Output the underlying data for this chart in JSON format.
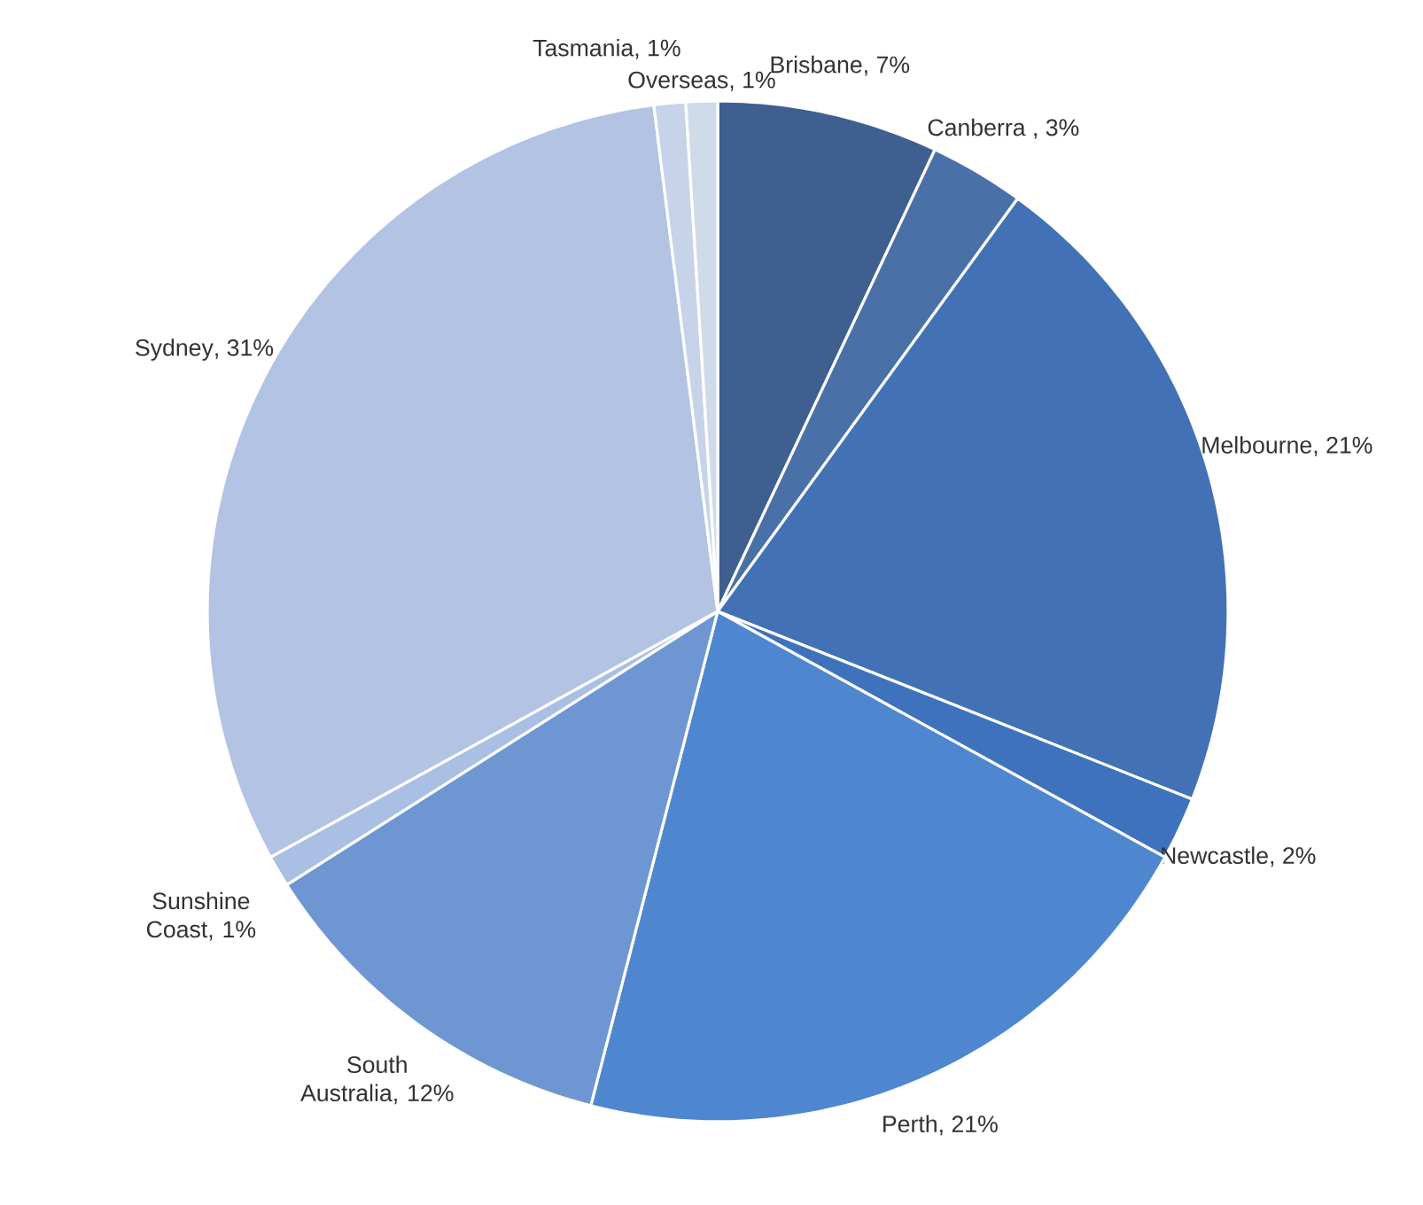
{
  "chart_data": {
    "type": "pie",
    "categories": [
      "Brisbane",
      "Canberra",
      "Melbourne",
      "Newcastle",
      "Perth",
      "South Australia",
      "Sunshine Coast",
      "Sydney",
      "Tasmania",
      "Overseas"
    ],
    "values": [
      7,
      3,
      21,
      2,
      21,
      12,
      1,
      31,
      1,
      1
    ],
    "value_labels": [
      ", 7%",
      " , 3%",
      ", 21%",
      ", 2%",
      ", 21%",
      ", 12%",
      ", 1%",
      ", 31%",
      ", 1%",
      ", 1%"
    ],
    "colors": [
      "#3e5f8f",
      "#4a70a8",
      "#4272b5",
      "#3f72bd",
      "#4f86d0",
      "#6e96d2",
      "#a9bfe3",
      "#b2c3e3",
      "#c7d3e8",
      "#d0dbe9"
    ]
  }
}
